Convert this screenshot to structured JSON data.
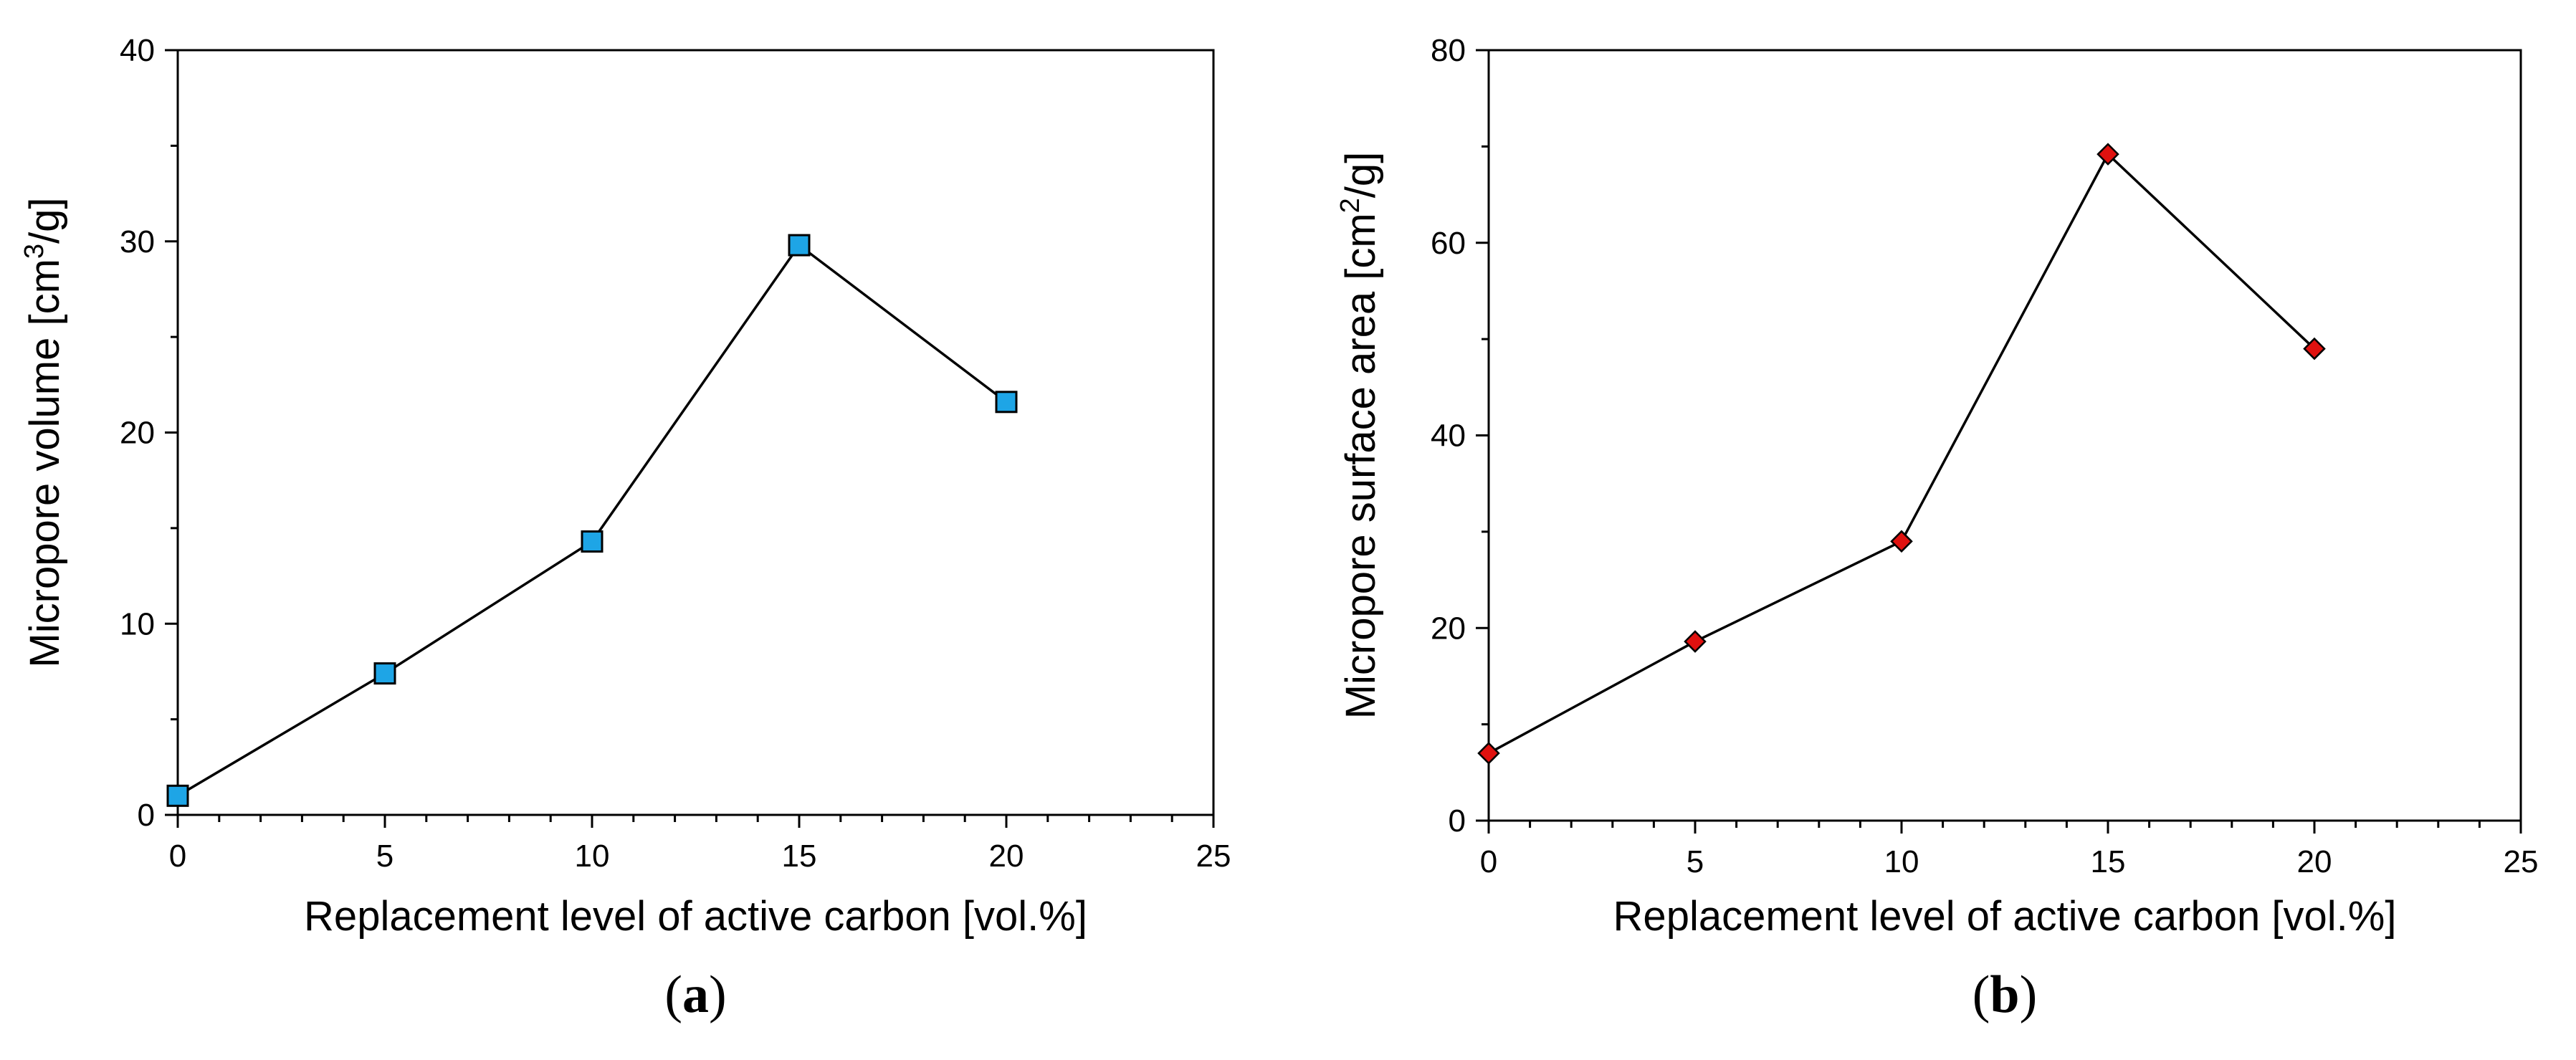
{
  "chart_data": [
    {
      "type": "line",
      "panel_label": "(a)",
      "panel_letter": "a",
      "x": [
        0,
        5,
        10,
        15,
        20
      ],
      "series": [
        {
          "name": "Micropore volume",
          "values": [
            1.0,
            7.4,
            14.3,
            29.8,
            21.6
          ],
          "marker": "square",
          "marker_color": "#1ea5e6"
        }
      ],
      "xlabel": "Replacement level of active carbon [vol.%]",
      "ylabel_prefix": "Micropore volume [cm",
      "ylabel_sup": "3",
      "ylabel_suffix": "/g]",
      "xlim": [
        0,
        25
      ],
      "ylim": [
        0,
        40
      ],
      "xticks": [
        0,
        5,
        10,
        15,
        20,
        25
      ],
      "xtick_labels": [
        "0",
        "5",
        "10",
        "15",
        "20",
        "25"
      ],
      "yticks": [
        0,
        10,
        20,
        30,
        40
      ],
      "ytick_labels": [
        "0",
        "10",
        "20",
        "30",
        "40"
      ],
      "grid": false
    },
    {
      "type": "line",
      "panel_label": "(b)",
      "panel_letter": "b",
      "x": [
        0,
        5,
        10,
        15,
        20
      ],
      "series": [
        {
          "name": "Micropore surface area",
          "values": [
            7.0,
            18.6,
            29.0,
            69.2,
            49.0
          ],
          "marker": "diamond",
          "marker_color": "#e0110f"
        }
      ],
      "xlabel": "Replacement level of active carbon [vol.%]",
      "ylabel_prefix": "Micropore surface area [cm",
      "ylabel_sup": "2",
      "ylabel_suffix": "/g]",
      "xlim": [
        0,
        25
      ],
      "ylim": [
        0,
        80
      ],
      "xticks": [
        0,
        5,
        10,
        15,
        20,
        25
      ],
      "xtick_labels": [
        "0",
        "5",
        "10",
        "15",
        "20",
        "25"
      ],
      "yticks": [
        0,
        20,
        40,
        60,
        80
      ],
      "ytick_labels": [
        "0",
        "20",
        "40",
        "60",
        "80"
      ],
      "grid": false
    }
  ]
}
